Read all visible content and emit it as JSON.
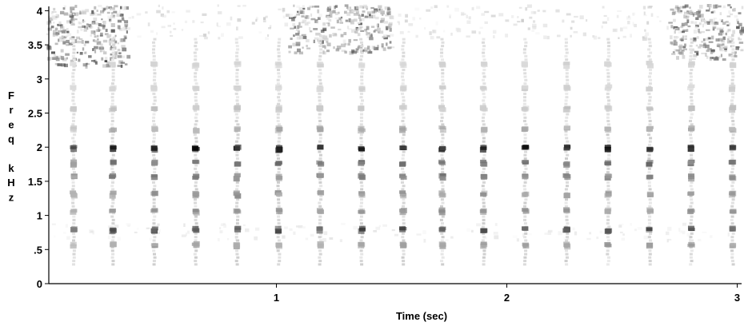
{
  "chart_data": {
    "type": "heatmap",
    "subtype": "spectrogram",
    "title": "",
    "xlabel": "Time (sec)",
    "ylabel_letters": [
      "F",
      "r",
      "e",
      "q",
      "",
      "k",
      "H",
      "z"
    ],
    "xlim": [
      0,
      3.02
    ],
    "ylim": [
      0,
      4.1
    ],
    "x_ticks": [
      {
        "value": 1,
        "label": "1"
      },
      {
        "value": 2,
        "label": "2"
      },
      {
        "value": 3,
        "label": "3"
      }
    ],
    "y_ticks": [
      {
        "value": 0,
        "label": "0"
      },
      {
        "value": 0.5,
        "label": ".5"
      },
      {
        "value": 1,
        "label": "1"
      },
      {
        "value": 1.5,
        "label": "1.5"
      },
      {
        "value": 2,
        "label": "2"
      },
      {
        "value": 2.5,
        "label": "2.5"
      },
      {
        "value": 3,
        "label": "3"
      },
      {
        "value": 3.5,
        "label": "3.5"
      },
      {
        "value": 4,
        "label": "4"
      }
    ],
    "colormap": {
      "low": "#ffffff",
      "high": "#000000"
    },
    "pulse_times_sec": [
      0.12,
      0.29,
      0.47,
      0.65,
      0.83,
      1.01,
      1.19,
      1.37,
      1.55,
      1.72,
      1.9,
      2.08,
      2.26,
      2.44,
      2.62,
      2.8,
      2.98
    ],
    "harmonic_bands_khz": [
      {
        "freq": 0.55,
        "intensity": 0.4
      },
      {
        "freq": 0.78,
        "intensity": 0.75
      },
      {
        "freq": 1.05,
        "intensity": 0.45
      },
      {
        "freq": 1.3,
        "intensity": 0.45
      },
      {
        "freq": 1.55,
        "intensity": 0.55
      },
      {
        "freq": 1.75,
        "intensity": 0.6
      },
      {
        "freq": 1.97,
        "intensity": 1.0
      },
      {
        "freq": 2.25,
        "intensity": 0.35
      },
      {
        "freq": 2.55,
        "intensity": 0.25
      },
      {
        "freq": 2.85,
        "intensity": 0.2
      },
      {
        "freq": 3.2,
        "intensity": 0.18
      }
    ],
    "noise_regions": [
      {
        "t_start": 0,
        "t_end": 0.35,
        "f_start": 3.2,
        "f_end": 4.1,
        "intensity": 0.7
      },
      {
        "t_start": 1.05,
        "t_end": 1.5,
        "f_start": 3.4,
        "f_end": 4.1,
        "intensity": 0.65
      },
      {
        "t_start": 2.7,
        "t_end": 3.02,
        "f_start": 3.3,
        "f_end": 4.1,
        "intensity": 0.65
      },
      {
        "t_start": 0,
        "t_end": 3.02,
        "f_start": 3.6,
        "f_end": 4.1,
        "intensity": 0.2
      },
      {
        "t_start": 0,
        "t_end": 3.02,
        "f_start": 0.65,
        "f_end": 0.9,
        "intensity": 0.12
      }
    ]
  }
}
